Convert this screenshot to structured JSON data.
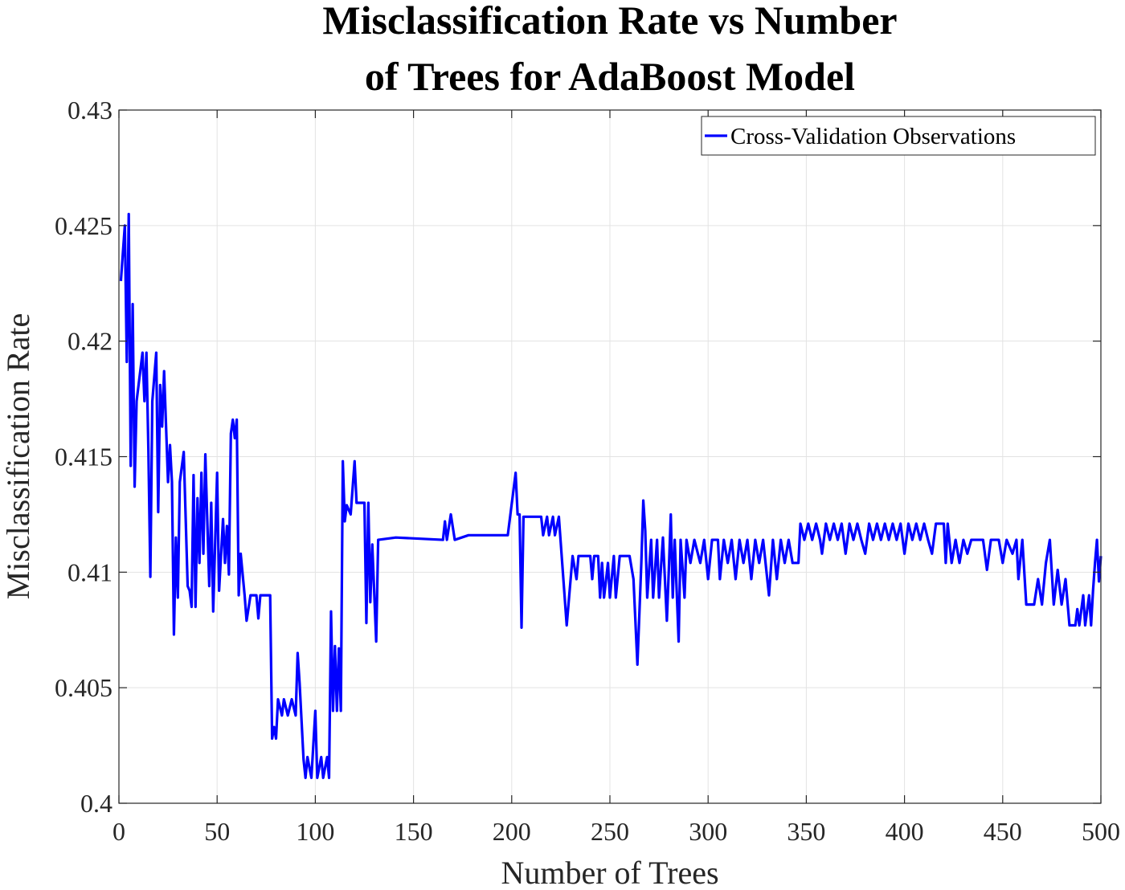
{
  "chart_data": {
    "type": "line",
    "title": [
      "Misclassification Rate vs Number",
      "of Trees for AdaBoost Model"
    ],
    "xlabel": "Number of Trees",
    "ylabel": "Misclassification Rate",
    "xlim": [
      0,
      500
    ],
    "ylim": [
      0.4,
      0.43
    ],
    "xticks": [
      0,
      50,
      100,
      150,
      200,
      250,
      300,
      350,
      400,
      450,
      500
    ],
    "yticks": [
      0.4,
      0.405,
      0.41,
      0.415,
      0.42,
      0.425,
      0.43
    ],
    "grid": true,
    "legend": "upper right",
    "x": [
      1,
      3,
      4,
      5,
      6,
      7,
      8,
      9,
      12,
      13,
      14,
      15,
      16,
      17,
      19,
      20,
      21,
      22,
      23,
      25,
      26,
      27,
      28,
      29,
      30,
      31,
      33,
      35,
      36,
      37,
      38,
      39,
      40,
      41,
      42,
      43,
      44,
      45,
      46,
      47,
      48,
      50,
      51,
      53,
      54,
      55,
      56,
      57,
      58,
      59,
      60,
      61,
      62,
      64,
      65,
      67,
      70,
      71,
      72,
      77,
      78,
      79,
      80,
      81,
      83,
      84,
      86,
      88,
      90,
      91,
      92,
      94,
      95,
      96,
      98,
      100,
      101,
      103,
      104,
      106,
      107,
      108,
      109,
      110,
      111,
      112,
      113,
      114,
      115,
      116,
      118,
      120,
      121,
      125,
      126,
      127,
      128,
      129,
      131,
      132,
      141,
      165,
      166,
      167,
      169,
      171,
      178,
      198,
      202,
      203,
      204,
      205,
      206,
      215,
      216,
      218,
      219,
      221,
      222,
      224,
      228,
      230,
      231,
      233,
      234,
      240,
      241,
      242,
      244,
      245,
      246,
      247,
      249,
      250,
      252,
      253,
      255,
      260,
      262,
      264,
      266,
      267,
      268,
      269,
      271,
      272,
      274,
      275,
      277,
      279,
      280,
      281,
      282,
      283,
      285,
      286,
      288,
      289,
      291,
      293,
      296,
      298,
      300,
      302,
      305,
      306,
      308,
      310,
      312,
      314,
      316,
      318,
      320,
      322,
      324,
      326,
      328,
      331,
      333,
      335,
      337,
      339,
      341,
      343,
      346,
      347,
      349,
      351,
      353,
      355,
      357,
      358,
      360,
      362,
      364,
      366,
      368,
      370,
      372,
      374,
      376,
      378,
      380,
      382,
      384,
      386,
      388,
      390,
      392,
      394,
      396,
      398,
      400,
      402,
      404,
      406,
      408,
      410,
      412,
      414,
      416,
      420,
      421,
      422,
      424,
      426,
      428,
      430,
      432,
      434,
      440,
      442,
      444,
      448,
      450,
      452,
      455,
      457,
      458,
      460,
      462,
      466,
      468,
      470,
      472,
      474,
      476,
      478,
      480,
      482,
      484,
      487,
      488,
      489,
      491,
      492,
      494,
      495,
      496,
      497,
      498,
      499,
      500
    ],
    "series": [
      {
        "name": "Cross-Validation Observations",
        "color": "#0000ff",
        "values": [
          0.4226,
          0.425,
          0.4191,
          0.4255,
          0.4146,
          0.4216,
          0.4137,
          0.4174,
          0.4195,
          0.4174,
          0.4195,
          0.4153,
          0.4098,
          0.4174,
          0.4195,
          0.4126,
          0.4181,
          0.4163,
          0.4187,
          0.4139,
          0.4155,
          0.4139,
          0.4073,
          0.4115,
          0.4089,
          0.4139,
          0.4152,
          0.4094,
          0.4092,
          0.4085,
          0.4142,
          0.4085,
          0.4132,
          0.4104,
          0.4143,
          0.4108,
          0.4151,
          0.4122,
          0.4094,
          0.413,
          0.4083,
          0.4143,
          0.4092,
          0.4123,
          0.4104,
          0.412,
          0.4099,
          0.416,
          0.4166,
          0.4158,
          0.4166,
          0.409,
          0.4108,
          0.409,
          0.4079,
          0.409,
          0.409,
          0.408,
          0.409,
          0.409,
          0.4028,
          0.4033,
          0.4028,
          0.4045,
          0.4038,
          0.4045,
          0.4038,
          0.4045,
          0.4038,
          0.4065,
          0.4052,
          0.4019,
          0.4011,
          0.402,
          0.4011,
          0.404,
          0.4011,
          0.402,
          0.4011,
          0.402,
          0.4011,
          0.4083,
          0.404,
          0.4068,
          0.404,
          0.4067,
          0.404,
          0.4148,
          0.4122,
          0.4129,
          0.4125,
          0.4148,
          0.413,
          0.413,
          0.4078,
          0.413,
          0.4087,
          0.4112,
          0.407,
          0.4114,
          0.4115,
          0.4114,
          0.4122,
          0.4114,
          0.4125,
          0.4114,
          0.4116,
          0.4116,
          0.4143,
          0.4125,
          0.4125,
          0.4076,
          0.4124,
          0.4124,
          0.4116,
          0.4124,
          0.4116,
          0.4124,
          0.4116,
          0.4124,
          0.4077,
          0.4097,
          0.4107,
          0.4097,
          0.4107,
          0.4107,
          0.4097,
          0.4107,
          0.4107,
          0.4089,
          0.4104,
          0.4089,
          0.4104,
          0.4089,
          0.4107,
          0.4089,
          0.4107,
          0.4107,
          0.4097,
          0.406,
          0.4104,
          0.4131,
          0.4118,
          0.4089,
          0.4114,
          0.4089,
          0.4114,
          0.4089,
          0.4115,
          0.4079,
          0.4101,
          0.4125,
          0.4089,
          0.4114,
          0.407,
          0.4114,
          0.4089,
          0.4114,
          0.4104,
          0.4114,
          0.4104,
          0.4114,
          0.4097,
          0.4114,
          0.4114,
          0.4097,
          0.4114,
          0.4104,
          0.4114,
          0.4097,
          0.4114,
          0.4104,
          0.4114,
          0.4097,
          0.4114,
          0.4104,
          0.4114,
          0.409,
          0.4114,
          0.4097,
          0.4114,
          0.4104,
          0.4114,
          0.4104,
          0.4104,
          0.4121,
          0.4114,
          0.4121,
          0.4114,
          0.4121,
          0.4114,
          0.4108,
          0.4121,
          0.4114,
          0.4121,
          0.4114,
          0.4121,
          0.4108,
          0.4121,
          0.4114,
          0.4121,
          0.4114,
          0.4108,
          0.4121,
          0.4114,
          0.4121,
          0.4114,
          0.4121,
          0.4114,
          0.4121,
          0.4114,
          0.4121,
          0.4108,
          0.4121,
          0.4114,
          0.4121,
          0.4114,
          0.4121,
          0.4114,
          0.4108,
          0.4121,
          0.4121,
          0.4104,
          0.4121,
          0.4104,
          0.4114,
          0.4104,
          0.4114,
          0.4108,
          0.4114,
          0.4114,
          0.4101,
          0.4114,
          0.4114,
          0.4104,
          0.4114,
          0.4108,
          0.4114,
          0.4097,
          0.4114,
          0.4086,
          0.4086,
          0.4097,
          0.4086,
          0.4104,
          0.4114,
          0.4086,
          0.4101,
          0.4086,
          0.4097,
          0.4077,
          0.4077,
          0.4084,
          0.4077,
          0.409,
          0.4077,
          0.409,
          0.4077,
          0.4092,
          0.4104,
          0.4114,
          0.4096,
          0.4107
        ]
      }
    ]
  }
}
